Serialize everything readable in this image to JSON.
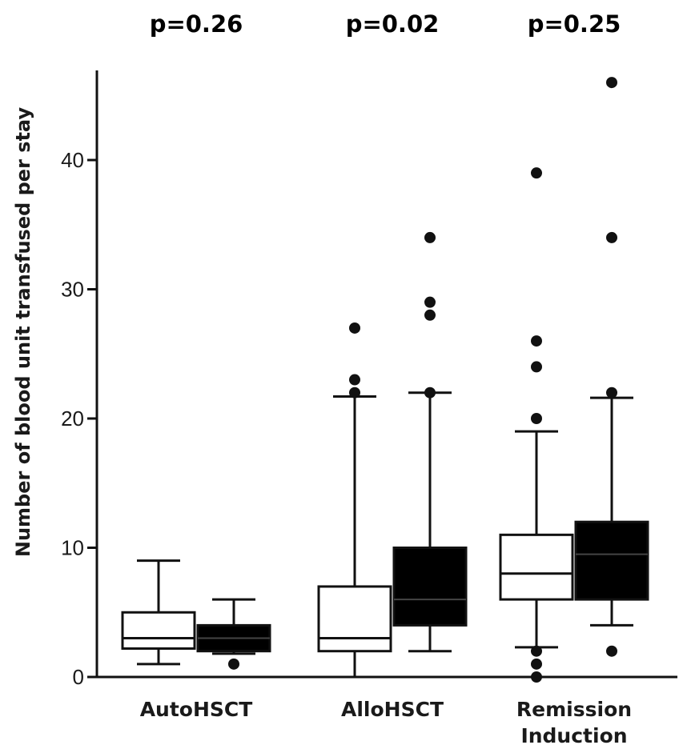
{
  "chart_data": {
    "type": "box",
    "ylabel": "Number of blood unit transfused per stay",
    "ylim": [
      0,
      46
    ],
    "yticks": [
      0,
      10,
      20,
      30,
      40
    ],
    "groups": [
      {
        "label": "AutoHSCT",
        "label_lines": [
          "AutoHSCT"
        ],
        "pvalue": "p=0.26",
        "boxes": [
          {
            "fill": "#ffffff",
            "whisker_low": 1,
            "q1": 2.2,
            "median": 3,
            "q3": 5,
            "whisker_high": 9,
            "outliers": []
          },
          {
            "fill": "#000000",
            "whisker_low": 1.8,
            "q1": 2,
            "median": 3,
            "q3": 4,
            "whisker_high": 6,
            "outliers": [
              1
            ]
          }
        ]
      },
      {
        "label": "AlloHSCT",
        "label_lines": [
          "AlloHSCT"
        ],
        "pvalue": "p=0.02",
        "boxes": [
          {
            "fill": "#ffffff",
            "whisker_low": 0,
            "q1": 2,
            "median": 3,
            "q3": 7,
            "whisker_high": 21.7,
            "outliers": [
              22,
              23,
              27
            ]
          },
          {
            "fill": "#000000",
            "whisker_low": 2,
            "q1": 4,
            "median": 6,
            "q3": 10,
            "whisker_high": 22,
            "outliers": [
              22,
              28,
              29,
              34
            ]
          }
        ]
      },
      {
        "label": "Remission Induction",
        "label_lines": [
          "Remission",
          "Induction"
        ],
        "pvalue": "p=0.25",
        "boxes": [
          {
            "fill": "#ffffff",
            "whisker_low": 2.3,
            "q1": 6,
            "median": 8,
            "q3": 11,
            "whisker_high": 19,
            "outliers": [
              0,
              1,
              2,
              20,
              24,
              26,
              39
            ]
          },
          {
            "fill": "#000000",
            "whisker_low": 4,
            "q1": 6,
            "median": 9.5,
            "q3": 12,
            "whisker_high": 21.6,
            "outliers": [
              2,
              22,
              34,
              46
            ]
          }
        ]
      }
    ]
  }
}
